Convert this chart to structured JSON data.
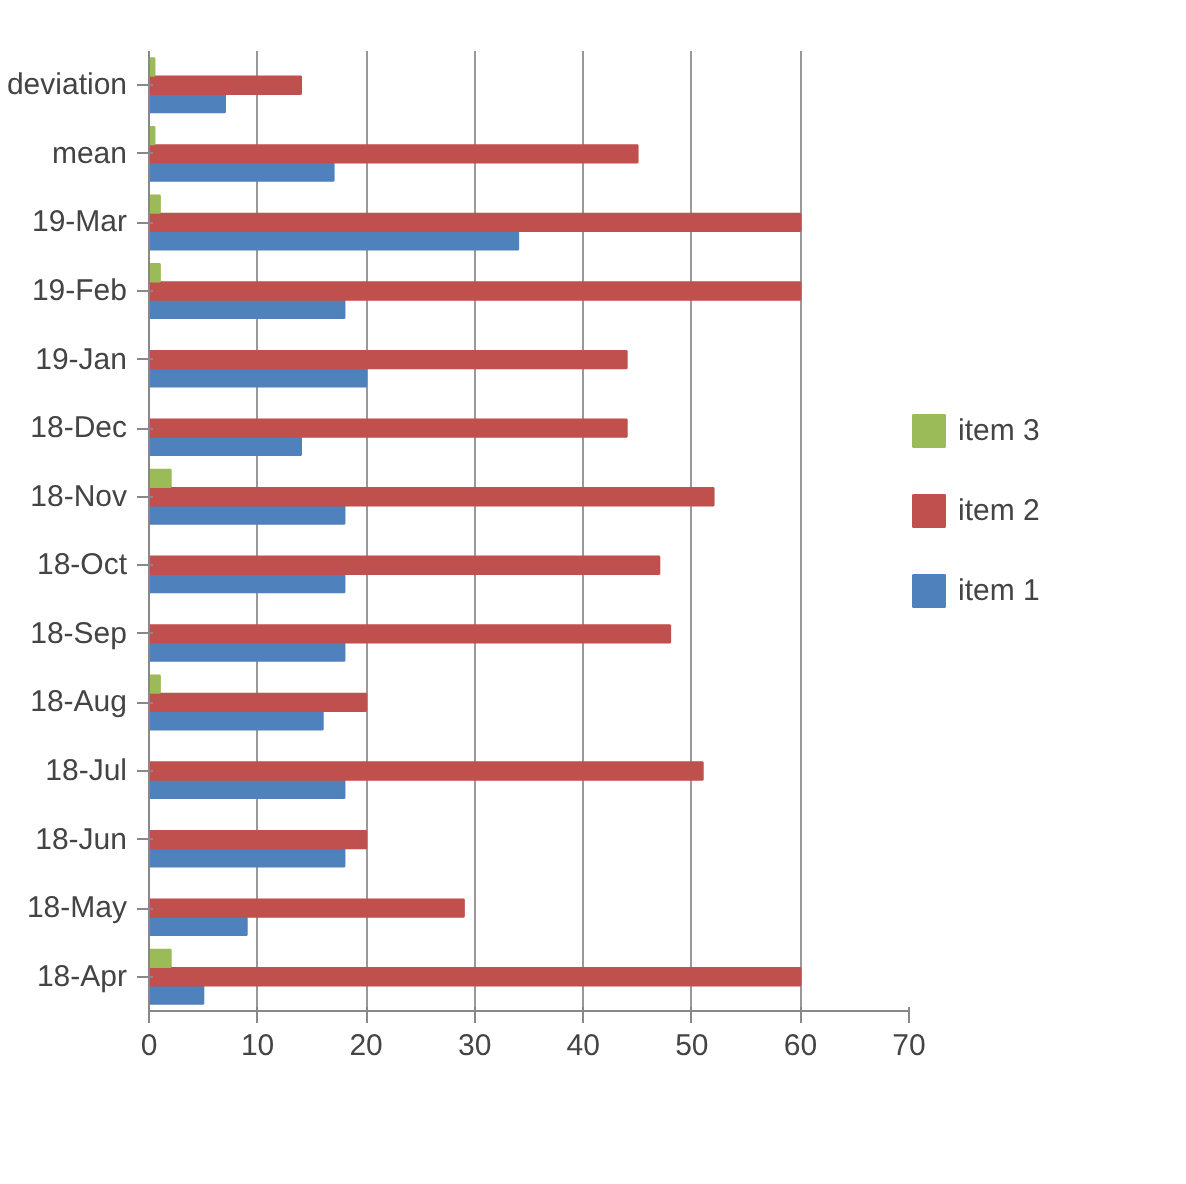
{
  "chart_data": {
    "type": "bar",
    "orientation": "horizontal",
    "categories": [
      "deviation",
      "mean",
      "19-Mar",
      "19-Feb",
      "19-Jan",
      "18-Dec",
      "18-Nov",
      "18-Oct",
      "18-Sep",
      "18-Aug",
      "18-Jul",
      "18-Jun",
      "18-May",
      "18-Apr"
    ],
    "series": [
      {
        "name": "item 1",
        "color": "#4f81bd",
        "values": [
          7,
          17,
          34,
          18,
          20,
          14,
          18,
          18,
          18,
          16,
          18,
          18,
          9,
          5
        ]
      },
      {
        "name": "item 2",
        "color": "#c0504d",
        "values": [
          14,
          45,
          60,
          60,
          44,
          44,
          52,
          47,
          48,
          20,
          51,
          20,
          29,
          60
        ]
      },
      {
        "name": "item 3",
        "color": "#9bbb59",
        "values": [
          0.5,
          0.5,
          1,
          1,
          0,
          0,
          2,
          0,
          0,
          1,
          0,
          0,
          0,
          2
        ]
      }
    ],
    "xlim": [
      0,
      70
    ],
    "xticks": [
      0,
      10,
      20,
      30,
      40,
      50,
      60,
      70
    ],
    "grid": "x",
    "legend": "right"
  }
}
